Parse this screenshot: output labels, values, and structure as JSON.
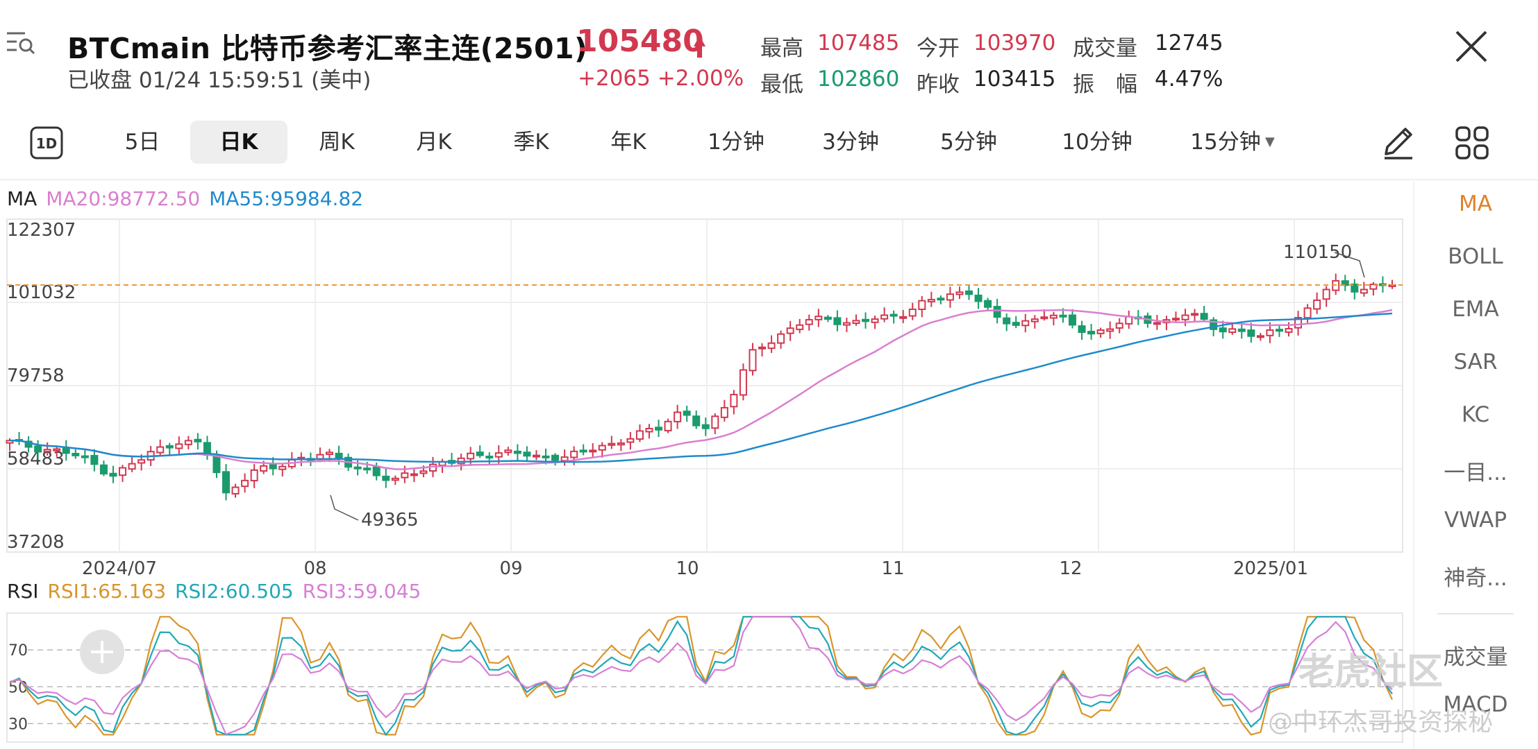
{
  "header": {
    "title": "BTCmain  比特币参考汇率主连(2501)",
    "subtitle": "已收盘 01/24 15:59:51 (美中)",
    "price": "105480",
    "change": "+2065  +2.00%",
    "stats": {
      "high_label": "最高",
      "high": "107485",
      "open_label": "今开",
      "open": "103970",
      "volume_label": "成交量",
      "volume": "12745",
      "low_label": "最低",
      "low": "102860",
      "prev_close_label": "昨收",
      "prev_close": "103415",
      "amplitude_label": "振　幅",
      "amplitude": "4.47%"
    }
  },
  "tabs": [
    {
      "label": "5日"
    },
    {
      "label": "日K",
      "active": true
    },
    {
      "label": "周K"
    },
    {
      "label": "月K"
    },
    {
      "label": "季K"
    },
    {
      "label": "年K"
    },
    {
      "label": "1分钟"
    },
    {
      "label": "3分钟"
    },
    {
      "label": "5分钟"
    },
    {
      "label": "10分钟"
    },
    {
      "label": "15分钟"
    }
  ],
  "icon_1d_label": "1D",
  "ma_legend": {
    "label": "MA",
    "ma20": "MA20:98772.50",
    "ma55": "MA55:95984.82"
  },
  "rsi_legend": {
    "label": "RSI",
    "rsi1": "RSI1:65.163",
    "rsi2": "RSI2:60.505",
    "rsi3": "RSI3:59.045"
  },
  "side_menu": [
    "MA",
    "BOLL",
    "EMA",
    "SAR",
    "KC",
    "一目...",
    "VWAP",
    "神奇...",
    "成交量",
    "MACD"
  ],
  "watermark": {
    "brand": "老虎社区",
    "author": "@中环杰哥投资探秘"
  },
  "colors": {
    "up": "#d2384f",
    "down": "#1a9b6c",
    "ma20": "#d97fcf",
    "ma55": "#1f8acb",
    "rsi1": "#d9952a",
    "rsi2": "#1fa8b8",
    "rsi3": "#d77fd6",
    "accent": "#e0822a"
  },
  "chart_data": [
    {
      "type": "candlestick",
      "y_ticks": [
        "122307",
        "101032",
        "79758",
        "58483",
        "37208"
      ],
      "ylim": [
        37208,
        122307
      ],
      "x_tick_labels": [
        "2024/07",
        "08",
        "09",
        "10",
        "11",
        "12",
        "2025/01"
      ],
      "current_price_line": 105480,
      "annotations": [
        {
          "label": "110150",
          "value": 110150
        },
        {
          "label": "49365",
          "value": 49365
        }
      ],
      "series": [
        {
          "name": "MA20",
          "last": 98772.5
        },
        {
          "name": "MA55",
          "last": 95984.82
        }
      ]
    },
    {
      "type": "line",
      "y_ticks": [
        "70",
        "50",
        "30"
      ],
      "series": [
        {
          "name": "RSI1",
          "last": 65.163
        },
        {
          "name": "RSI2",
          "last": 60.505
        },
        {
          "name": "RSI3",
          "last": 59.045
        }
      ]
    }
  ]
}
